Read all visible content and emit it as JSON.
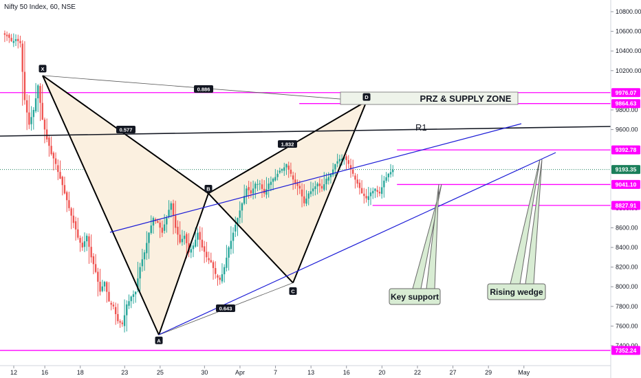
{
  "header": {
    "title": "Nifty 50 Index, 60, NSE"
  },
  "colors": {
    "up": "#26a69a",
    "down": "#ef5350",
    "magenta": "#ff00ff",
    "wedge": "#1b1bd6",
    "pattern": "#000000",
    "pattern_fill": "#fbf0e0",
    "callout_fill": "#d8ecd3",
    "zone_fill": "#eef3ea",
    "last_price": "#1a7f5a"
  },
  "chart_data": {
    "type": "candlestick",
    "ylim": [
      7300,
      10900
    ],
    "y_ticks": [
      {
        "v": 10800,
        "label": "10800.00"
      },
      {
        "v": 10600,
        "label": "10600.00"
      },
      {
        "v": 10400,
        "label": "10400.00"
      },
      {
        "v": 10200,
        "label": "10200.00"
      },
      {
        "v": 9800,
        "label": "9800.00"
      },
      {
        "v": 9600,
        "label": "9600.00"
      },
      {
        "v": 8800,
        "label": "8800.00"
      },
      {
        "v": 8600,
        "label": "8600.00"
      },
      {
        "v": 8400,
        "label": "8400.00"
      },
      {
        "v": 8200,
        "label": "8200.00"
      },
      {
        "v": 8000,
        "label": "8000.00"
      },
      {
        "v": 7800,
        "label": "7800.00"
      },
      {
        "v": 7600,
        "label": "7600.00"
      },
      {
        "v": 7400,
        "label": "7400.00"
      }
    ],
    "x_ticks": [
      {
        "i": 0,
        "label": "12"
      },
      {
        "i": 7,
        "label": "16"
      },
      {
        "i": 15,
        "label": "18"
      },
      {
        "i": 25,
        "label": "23"
      },
      {
        "i": 33,
        "label": "25"
      },
      {
        "i": 43,
        "label": "30"
      },
      {
        "i": 51,
        "label": "Apr"
      },
      {
        "i": 59,
        "label": "7"
      },
      {
        "i": 67,
        "label": "13"
      },
      {
        "i": 75,
        "label": "16"
      },
      {
        "i": 83,
        "label": "20"
      },
      {
        "i": 91,
        "label": "22"
      },
      {
        "i": 99,
        "label": "27"
      },
      {
        "i": 107,
        "label": "29"
      },
      {
        "i": 115,
        "label": "May"
      }
    ],
    "closes": [
      10550,
      10500,
      10520,
      10480,
      9900,
      9650,
      9800,
      10050,
      9700,
      9500,
      9350,
      9250,
      9100,
      8950,
      8800,
      8650,
      8500,
      8400,
      8520,
      8300,
      8150,
      7950,
      8050,
      7850,
      7800,
      7650,
      7620,
      7820,
      7900,
      7950,
      8200,
      8350,
      8550,
      8700,
      8650,
      8550,
      8700,
      8850,
      8600,
      8450,
      8520,
      8350,
      8420,
      8550,
      8400,
      8300,
      8250,
      8130,
      8070,
      8200,
      8400,
      8550,
      8700,
      8850,
      9000,
      8950,
      9050,
      9050,
      8950,
      9050,
      9100,
      9150,
      9200,
      9250,
      9150,
      9050,
      9000,
      8850,
      8950,
      9000,
      9050,
      9000,
      9100,
      9150,
      9250,
      9300,
      9320,
      9250,
      9150,
      9050,
      8950,
      8900,
      8960,
      9000,
      8950,
      9080,
      9150,
      9190
    ],
    "series_overlay": [
      {
        "i": 0,
        "y": 10550
      },
      {
        "i": 9,
        "y": 10100
      }
    ],
    "h_levels": [
      {
        "v": 9976.07,
        "label": "9976.07",
        "x_start_frac": 0.0
      },
      {
        "v": 9864.63,
        "label": "9864.63",
        "x_start_frac": 0.49
      },
      {
        "v": 9392.78,
        "label": "9392.78",
        "x_start_frac": 0.65
      },
      {
        "v": 9041.1,
        "label": "9041.10",
        "x_start_frac": 0.65
      },
      {
        "v": 8827.91,
        "label": "8827.91",
        "x_start_frac": 0.61
      },
      {
        "v": 7352.24,
        "label": "7352.24",
        "x_start_frac": 0.0
      }
    ],
    "last_price": {
      "v": 9193.35,
      "label": "9193.35"
    },
    "pattern_points": [
      {
        "name": "X",
        "v": 10150
      },
      {
        "name": "A",
        "v": 7510
      },
      {
        "name": "B",
        "v": 8950
      },
      {
        "name": "C",
        "v": 8040
      },
      {
        "name": "D",
        "v": 9890
      }
    ],
    "ratios": [
      "0.886",
      "0.577",
      "1.832",
      "0.643"
    ],
    "zone_label": "PRZ & SUPPLY ZONE",
    "r1_label": "R1",
    "callouts": [
      "Key support",
      "Rising wedge"
    ]
  }
}
